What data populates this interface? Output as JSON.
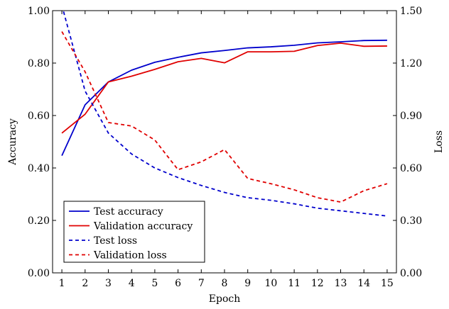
{
  "chart_data": {
    "type": "line",
    "title": "",
    "xlabel": "Epoch",
    "ylabel_left": "Accuracy",
    "ylabel_right": "Loss",
    "x": [
      1,
      2,
      3,
      4,
      5,
      6,
      7,
      8,
      9,
      10,
      11,
      12,
      13,
      14,
      15
    ],
    "xlim": [
      0.6,
      15.4
    ],
    "ylim_left": [
      0,
      1
    ],
    "ylim_right": [
      0,
      1.5
    ],
    "yticks_left": [
      "0.00",
      "0.20",
      "0.40",
      "0.60",
      "0.80",
      "1.00"
    ],
    "yticks_right": [
      "0.00",
      "0.30",
      "0.60",
      "0.90",
      "1.20",
      "1.50"
    ],
    "xticks": [
      "1",
      "2",
      "3",
      "4",
      "5",
      "6",
      "7",
      "8",
      "9",
      "10",
      "11",
      "12",
      "13",
      "14",
      "15"
    ],
    "grid": false,
    "legend_position": "bottom-left",
    "series": [
      {
        "name": "Test accuracy",
        "axis": "left",
        "color": "#0000cc",
        "dash": "solid",
        "values": [
          0.447,
          0.641,
          0.728,
          0.773,
          0.803,
          0.822,
          0.839,
          0.848,
          0.858,
          0.862,
          0.868,
          0.877,
          0.881,
          0.886,
          0.887
        ]
      },
      {
        "name": "Validation accuracy",
        "axis": "left",
        "color": "#e00000",
        "dash": "solid",
        "values": [
          0.533,
          0.605,
          0.728,
          0.75,
          0.776,
          0.805,
          0.818,
          0.801,
          0.843,
          0.843,
          0.845,
          0.867,
          0.876,
          0.864,
          0.865
        ]
      },
      {
        "name": "Test loss",
        "axis": "right",
        "color": "#0000cc",
        "dash": "dashed",
        "values": [
          1.53,
          1.04,
          0.8,
          0.68,
          0.6,
          0.545,
          0.5,
          0.46,
          0.43,
          0.415,
          0.395,
          0.37,
          0.355,
          0.34,
          0.325
        ]
      },
      {
        "name": "Validation loss",
        "axis": "right",
        "color": "#e00000",
        "dash": "dashed",
        "values": [
          1.38,
          1.15,
          0.86,
          0.84,
          0.76,
          0.59,
          0.635,
          0.705,
          0.54,
          0.51,
          0.475,
          0.43,
          0.405,
          0.47,
          0.51
        ]
      }
    ]
  }
}
